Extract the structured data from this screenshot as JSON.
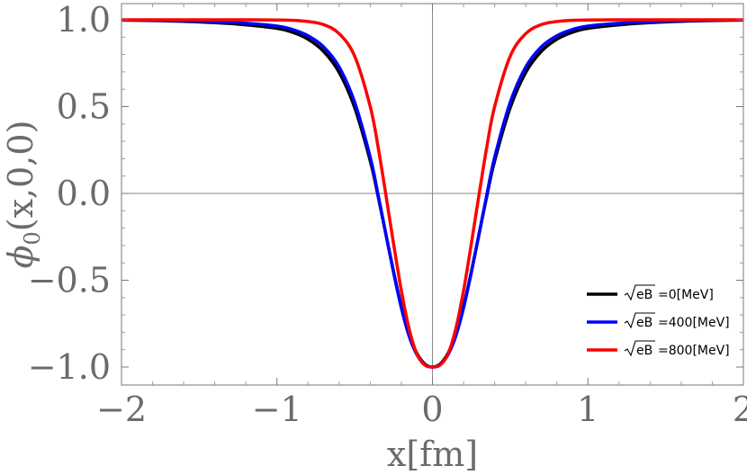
{
  "chart_data": {
    "type": "line",
    "title": "",
    "xlabel": "x[fm]",
    "ylabel_symbol": "ϕ",
    "ylabel_sub": "0",
    "ylabel_args": "(x,0,0)",
    "xlim": [
      -2,
      2
    ],
    "ylim": [
      -1.0,
      1.0
    ],
    "x_ticks": [
      -2,
      -1,
      0,
      1,
      2
    ],
    "x_tick_labels": [
      "−2",
      "−1",
      "0",
      "1",
      "2"
    ],
    "y_ticks": [
      1.0,
      0.5,
      0.0,
      -0.5,
      -1.0
    ],
    "y_tick_labels": [
      "1.0",
      "0.5",
      "0.0",
      "−0.5",
      "−1.0"
    ],
    "grid": false,
    "zero_lines": true,
    "legend_position": "bottom-right",
    "x": [
      -2.0,
      -1.75,
      -1.5,
      -1.25,
      -1.0,
      -0.9,
      -0.8,
      -0.7,
      -0.6,
      -0.5,
      -0.4,
      -0.35,
      -0.3,
      -0.25,
      -0.2,
      -0.15,
      -0.1,
      -0.05,
      0.0,
      0.05,
      0.1,
      0.15,
      0.2,
      0.25,
      0.3,
      0.35,
      0.4,
      0.5,
      0.6,
      0.7,
      0.8,
      0.9,
      1.0,
      1.25,
      1.5,
      1.75,
      2.0
    ],
    "series": [
      {
        "label_prefix": "eB",
        "label_suffix": "=0[MeV]",
        "color": "#000000",
        "values": [
          0.998,
          0.995,
          0.988,
          0.975,
          0.951,
          0.928,
          0.888,
          0.818,
          0.697,
          0.493,
          0.187,
          -0.015,
          -0.233,
          -0.451,
          -0.651,
          -0.812,
          -0.921,
          -0.982,
          -1.0,
          -0.982,
          -0.921,
          -0.812,
          -0.651,
          -0.451,
          -0.233,
          -0.015,
          0.187,
          0.493,
          0.697,
          0.818,
          0.888,
          0.928,
          0.951,
          0.975,
          0.988,
          0.995,
          0.998
        ]
      },
      {
        "label_prefix": "eB",
        "label_suffix": "=400[MeV]",
        "color": "#0000ff",
        "values": [
          0.999,
          0.997,
          0.993,
          0.983,
          0.964,
          0.944,
          0.908,
          0.844,
          0.728,
          0.524,
          0.208,
          -0.006,
          -0.232,
          -0.456,
          -0.66,
          -0.822,
          -0.929,
          -0.986,
          -1.0,
          -0.986,
          -0.929,
          -0.822,
          -0.66,
          -0.456,
          -0.232,
          -0.006,
          0.208,
          0.524,
          0.728,
          0.844,
          0.908,
          0.944,
          0.964,
          0.983,
          0.993,
          0.997,
          0.999
        ]
      },
      {
        "label_prefix": "eB",
        "label_suffix": "=800[MeV]",
        "color": "#ff0000",
        "values": [
          1.0,
          1.0,
          1.0,
          1.0,
          0.999,
          0.997,
          0.99,
          0.972,
          0.92,
          0.79,
          0.5,
          0.27,
          -0.005,
          -0.29,
          -0.56,
          -0.78,
          -0.925,
          -0.988,
          -1.0,
          -0.988,
          -0.925,
          -0.78,
          -0.56,
          -0.29,
          -0.005,
          0.27,
          0.5,
          0.79,
          0.92,
          0.972,
          0.99,
          0.997,
          0.999,
          1.0,
          1.0,
          1.0,
          1.0
        ]
      }
    ]
  }
}
